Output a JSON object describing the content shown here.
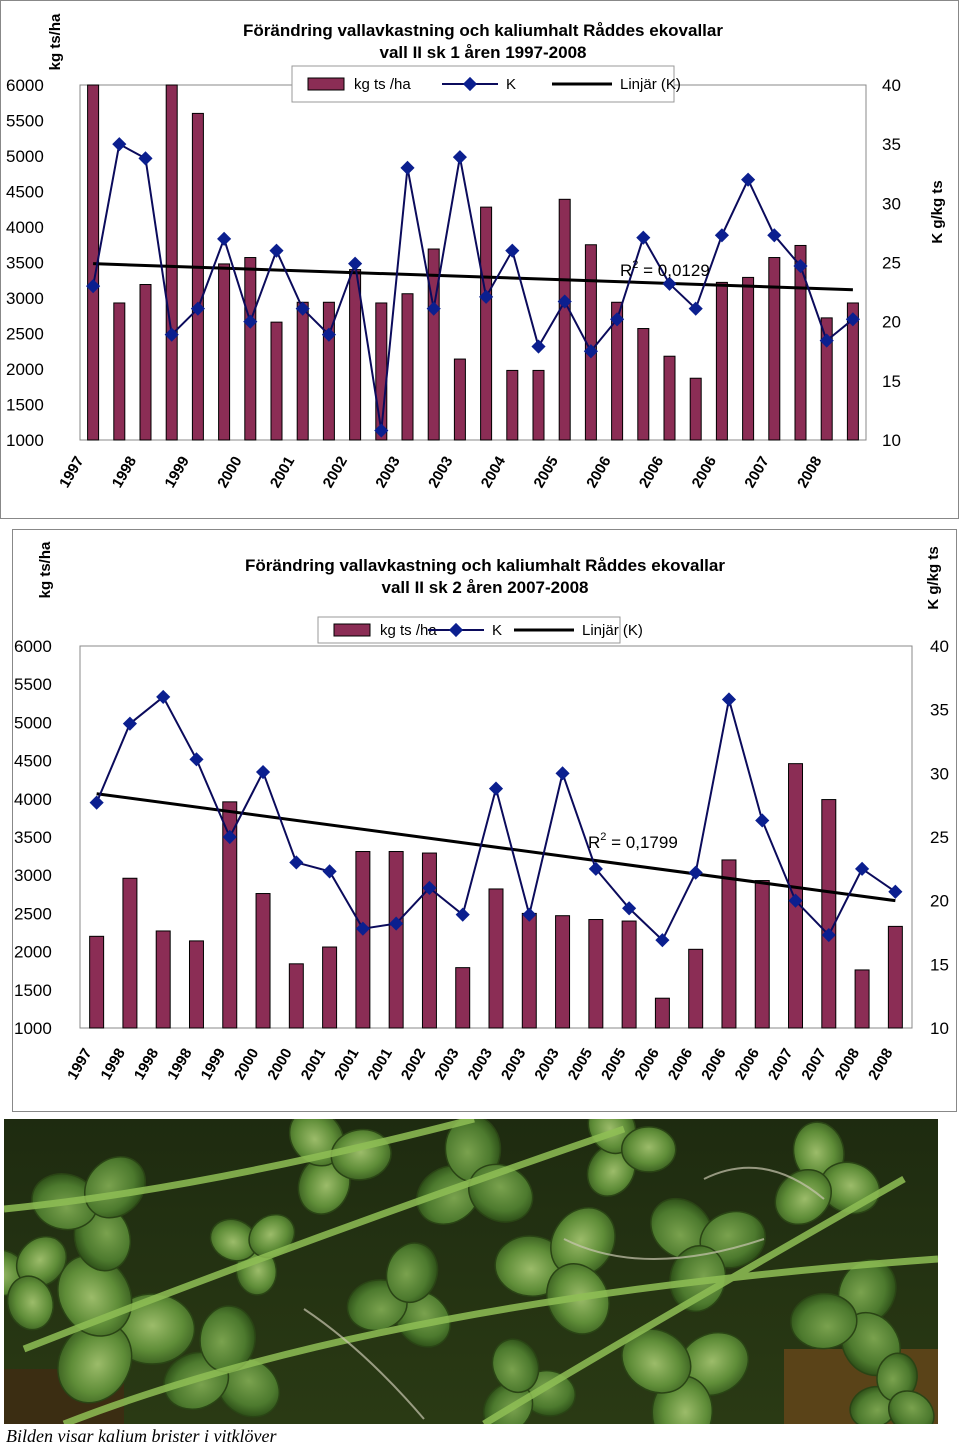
{
  "chart_data": [
    {
      "type": "bar",
      "title": [
        "Förändring vallavkastning och kaliumhalt Råddes ekovallar",
        "vall II sk 1 åren 1997-2008"
      ],
      "ylabel_left": "kg ts/ha",
      "ylabel_right": "K g/kg ts",
      "ylim_left": [
        1000,
        6000
      ],
      "yticks_left": [
        6000,
        5500,
        5000,
        4500,
        4000,
        3500,
        3000,
        2500,
        2000,
        1500,
        1000
      ],
      "ylim_right": [
        10,
        40
      ],
      "yticks_right": [
        40,
        35,
        30,
        25,
        20,
        15,
        10
      ],
      "legend": {
        "bars": "kg ts /ha",
        "line": "K",
        "trend": "Linjär (K)",
        "placement": "top-center"
      },
      "r2_label": "R",
      "r2_value": " = 0,0129",
      "x_tick_labels": [
        "1997",
        "1998",
        "1999",
        "2000",
        "2001",
        "2002",
        "2003",
        "2003",
        "2004",
        "2005",
        "2006",
        "2006",
        "2006",
        "2007",
        "2008"
      ],
      "bars": [
        6000,
        2930,
        3190,
        6000,
        5600,
        3480,
        3570,
        2660,
        2940,
        2940,
        3400,
        2930,
        3060,
        3690,
        2140,
        4280,
        1980,
        1980,
        4390,
        3750,
        2940,
        2570,
        2180,
        1870,
        3220,
        3290,
        3570,
        3740,
        2720,
        2930
      ],
      "K": [
        23.0,
        35.0,
        33.8,
        18.9,
        21.1,
        27.0,
        20.0,
        26.0,
        21.1,
        18.9,
        24.9,
        10.8,
        33.0,
        21.1,
        33.9,
        22.1,
        26.0,
        17.9,
        21.7,
        17.5,
        20.2,
        27.1,
        23.2,
        21.1,
        27.3,
        32.0,
        27.3,
        24.7,
        18.4,
        20.2
      ],
      "trend": {
        "start": 24.9,
        "end": 22.7
      },
      "colors": {
        "bar_fill": "#8b2d55",
        "line": "#0b0b5c",
        "marker": "#0b1f8f",
        "trend": "#000000"
      }
    },
    {
      "type": "bar",
      "title": [
        "Förändring vallavkastning och kaliumhalt Råddes ekovallar",
        "vall II sk 2 åren 2007-2008"
      ],
      "ylabel_left": "kg ts/ha",
      "ylabel_right": "K g/kg ts",
      "ylim_left": [
        1000,
        6000
      ],
      "yticks_left": [
        6000,
        5500,
        5000,
        4500,
        4000,
        3500,
        3000,
        2500,
        2000,
        1500,
        1000
      ],
      "ylim_right": [
        10,
        40
      ],
      "yticks_right": [
        40,
        35,
        30,
        25,
        20,
        15,
        10
      ],
      "legend": {
        "bars": "kg ts /ha",
        "line": "K",
        "trend": "Linjär (K)",
        "placement": "top-center"
      },
      "r2_label": "R",
      "r2_value": " = 0,1799",
      "x_tick_labels": [
        "1997",
        "1998",
        "1998",
        "1998",
        "1999",
        "2000",
        "2000",
        "2001",
        "2001",
        "2001",
        "2002",
        "2003",
        "2003",
        "2003",
        "2003",
        "2005",
        "2005",
        "2006",
        "2006",
        "2006",
        "2006",
        "2007",
        "2007",
        "2008",
        "2008"
      ],
      "bars": [
        2200,
        2960,
        2270,
        2140,
        3960,
        2760,
        1840,
        2060,
        3310,
        3310,
        3290,
        1790,
        2820,
        2500,
        2470,
        2420,
        2400,
        1390,
        2030,
        3200,
        2930,
        4460,
        3990,
        1760,
        2330
      ],
      "K": [
        27.7,
        33.9,
        36.0,
        31.1,
        25.0,
        30.1,
        23.0,
        22.3,
        17.8,
        18.2,
        21.0,
        18.9,
        28.8,
        18.9,
        30.0,
        22.5,
        19.4,
        16.9,
        22.2,
        35.8,
        26.3,
        20.0,
        17.3,
        22.5,
        20.7
      ],
      "trend": {
        "start": 28.4,
        "end": 20.0
      },
      "colors": {
        "bar_fill": "#8b2d55",
        "line": "#0b0b5c",
        "marker": "#0b1f8f",
        "trend": "#000000"
      }
    }
  ],
  "photo": {
    "caption": "Bilden visar kalium brister i vitklöver",
    "icon": "clover-leaves-photo"
  }
}
